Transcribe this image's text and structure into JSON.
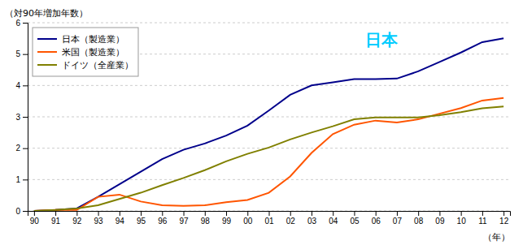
{
  "chart_data": {
    "type": "line",
    "ylabel": "（対90年増加年数）",
    "xlabel": "（年）",
    "categories": [
      "90",
      "91",
      "92",
      "93",
      "94",
      "95",
      "96",
      "97",
      "98",
      "99",
      "00",
      "01",
      "02",
      "03",
      "04",
      "05",
      "06",
      "07",
      "08",
      "09",
      "10",
      "11",
      "12"
    ],
    "series": [
      {
        "name": "日本（製造業）",
        "color": "#00008B",
        "values": [
          0.0,
          0.03,
          0.08,
          0.45,
          0.85,
          1.25,
          1.65,
          1.95,
          2.15,
          2.4,
          2.72,
          3.2,
          3.7,
          4.0,
          4.1,
          4.2,
          4.2,
          4.22,
          4.45,
          4.75,
          5.05,
          5.38,
          5.5
        ]
      },
      {
        "name": "米国（製造業）",
        "color": "#FF5500",
        "values": [
          0.0,
          0.03,
          0.03,
          0.45,
          0.52,
          0.3,
          0.18,
          0.16,
          0.18,
          0.28,
          0.35,
          0.58,
          1.1,
          1.85,
          2.45,
          2.75,
          2.88,
          2.82,
          2.92,
          3.1,
          3.28,
          3.52,
          3.6
        ]
      },
      {
        "name": "ドイツ（全産業）",
        "color": "#808000",
        "values": [
          0.0,
          0.03,
          0.08,
          0.18,
          0.38,
          0.58,
          0.82,
          1.05,
          1.3,
          1.58,
          1.82,
          2.02,
          2.28,
          2.5,
          2.7,
          2.92,
          2.98,
          2.98,
          2.98,
          3.05,
          3.15,
          3.27,
          3.33
        ]
      }
    ],
    "ylim": [
      0,
      6
    ],
    "yticks": [
      0,
      1,
      2,
      3,
      4,
      5,
      6
    ],
    "grid": true,
    "legend": "top-left",
    "annotations": [
      {
        "text": "日本",
        "color": "#00CCFF"
      }
    ]
  }
}
